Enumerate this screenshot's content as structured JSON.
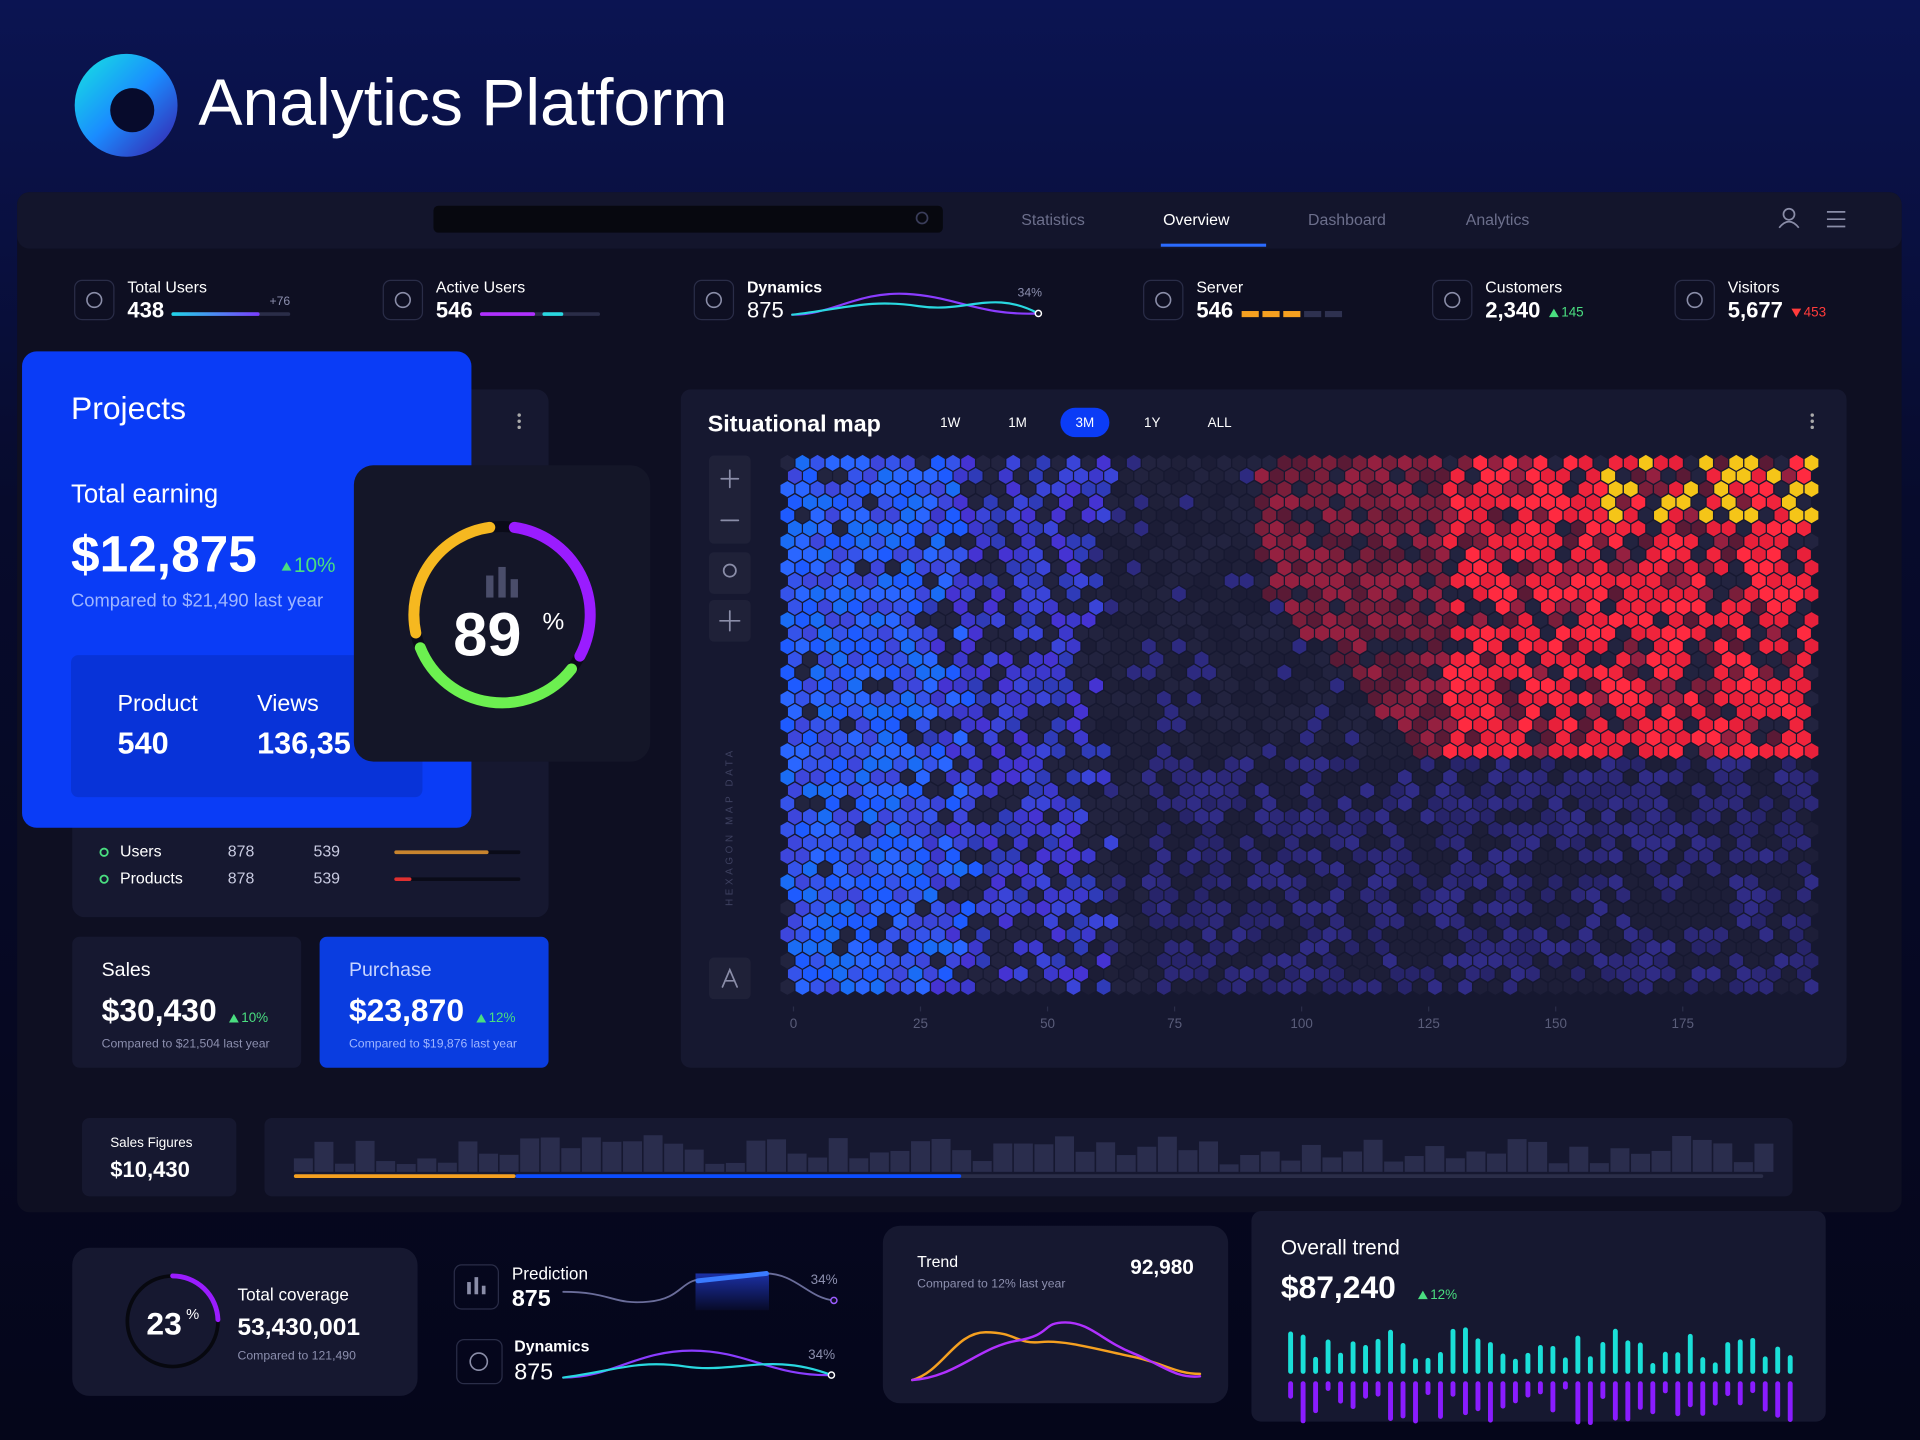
{
  "header": {
    "title": "Analytics Platform"
  },
  "nav": {
    "tabs": [
      "Statistics",
      "Overview",
      "Dashboard",
      "Analytics"
    ],
    "active_tab": 1
  },
  "stats": [
    {
      "label": "Total Users",
      "value": "438",
      "change": "+76"
    },
    {
      "label": "Active Users",
      "value": "546"
    },
    {
      "label": "Dynamics",
      "value": "875",
      "change": "34%"
    },
    {
      "label": "Server",
      "value": "546"
    },
    {
      "label": "Customers",
      "value": "2,340",
      "change": "145",
      "trend": "up"
    },
    {
      "label": "Visitors",
      "value": "5,677",
      "change": "453",
      "trend": "down"
    }
  ],
  "projects": {
    "title": "Projects",
    "label": "Total earning",
    "value": "$12,875",
    "change": "10%",
    "note": "Compared to $21,490 last year",
    "product_label": "Product",
    "product_value": "540",
    "views_label": "Views",
    "views_value": "136,35"
  },
  "donut": {
    "value": "89",
    "unit": "%"
  },
  "list": {
    "rows": [
      [
        "Users",
        "878",
        "539"
      ],
      [
        "Products",
        "878",
        "539"
      ]
    ]
  },
  "sales": {
    "label": "Sales",
    "value": "$30,430",
    "change": "10%",
    "note": "Compared to $21,504 last year"
  },
  "purchase": {
    "label": "Purchase",
    "value": "$23,870",
    "change": "12%",
    "note": "Compared to $19,876 last year"
  },
  "map": {
    "title": "Situational map",
    "ranges": [
      "1W",
      "1M",
      "3M",
      "1Y",
      "ALL"
    ],
    "active_range": 2,
    "axis_label": "HEXAGON MAP DATA",
    "xlim": [
      0,
      200
    ],
    "xticks": [
      0,
      25,
      50,
      75,
      100,
      125,
      150,
      175
    ]
  },
  "sales_figures": {
    "label": "Sales Figures",
    "value": "$10,430"
  },
  "coverage": {
    "value": "23",
    "unit": "%",
    "label": "Total coverage",
    "total": "53,430,001",
    "note": "Compared to 121,490"
  },
  "prediction": {
    "label": "Prediction",
    "value": "875",
    "change": "34%"
  },
  "dynamics": {
    "label": "Dynamics",
    "value": "875",
    "change": "34%"
  },
  "trend": {
    "label": "Trend",
    "note": "Compared to 12% last year",
    "value": "92,980"
  },
  "overall_trend": {
    "label": "Overall trend",
    "value": "$87,240",
    "change": "12%"
  }
}
